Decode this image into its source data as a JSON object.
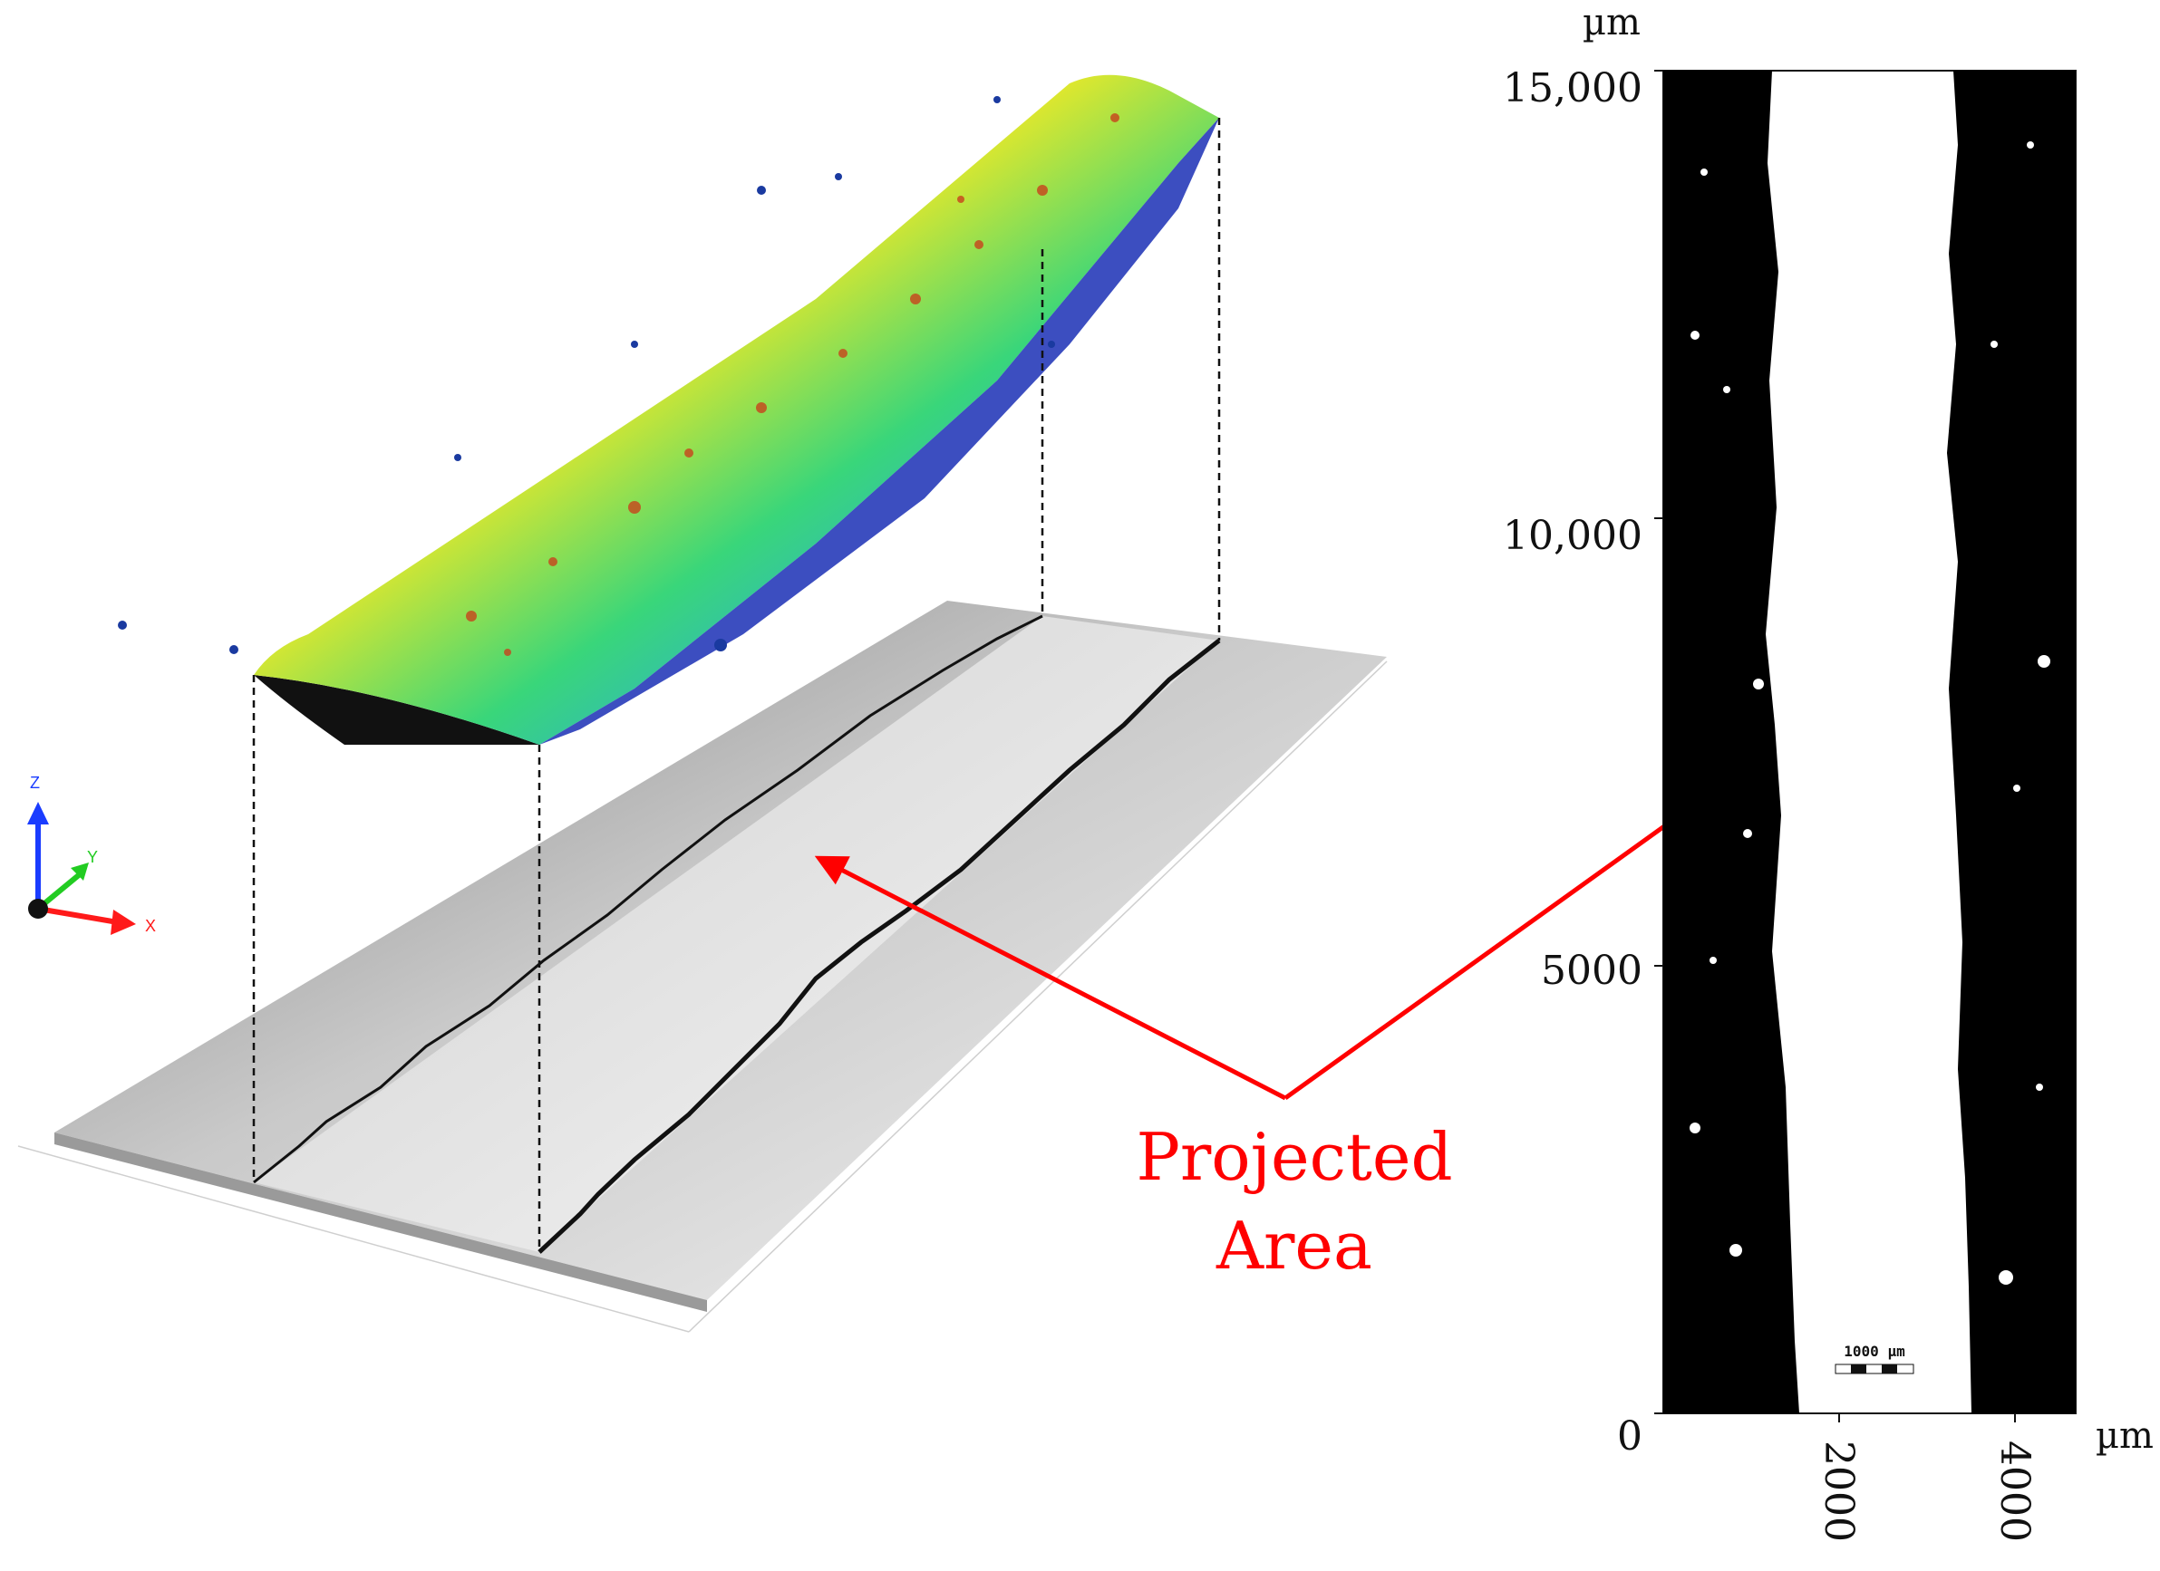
{
  "surface_3d": {
    "axis_triad": {
      "x_label": "X",
      "y_label": "Y",
      "z_label": "Z"
    }
  },
  "annotation": {
    "line1": "Projected",
    "line2": "Area",
    "color": "#ff0000"
  },
  "binary_map": {
    "y_unit": "µm",
    "x_unit": "µm",
    "y_ticks": [
      "15,000",
      "10,000",
      "5000",
      "0"
    ],
    "x_ticks": [
      "2000",
      "4000"
    ],
    "scalebar_label": "1000 µm",
    "extent_um": {
      "x": [
        0,
        4700
      ],
      "y": [
        0,
        15000
      ]
    }
  },
  "colors": {
    "surface_gradient": [
      "#1a2fb5",
      "#2ea8e0",
      "#39d67a",
      "#e6e82a",
      "#f59a1a",
      "#c8421c"
    ],
    "arrow": "#ff0000",
    "mask_black": "#000000"
  }
}
